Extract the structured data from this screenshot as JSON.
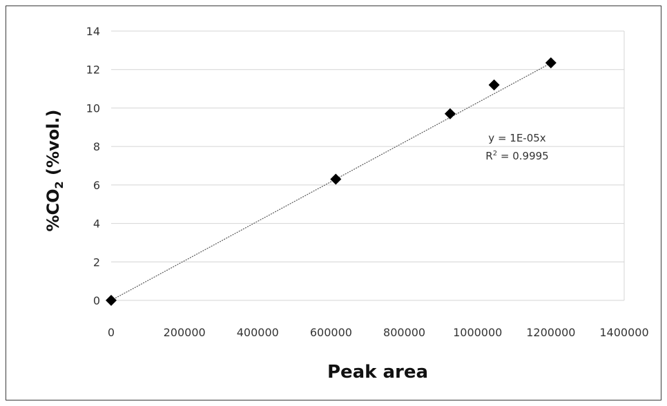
{
  "chart_data": {
    "type": "scatter",
    "xlabel": "Peak area",
    "ylabel_main": "%CO",
    "ylabel_sub": "2",
    "ylabel_tail": " (%vol.)",
    "xlim": [
      0,
      1400000
    ],
    "ylim": [
      0,
      14
    ],
    "x_ticks": [
      "0",
      "200000",
      "400000",
      "600000",
      "800000",
      "1000000",
      "1200000",
      "1400000"
    ],
    "y_ticks": [
      "0",
      "2",
      "4",
      "6",
      "8",
      "10",
      "12",
      "14"
    ],
    "grid": true,
    "points": [
      {
        "x": 0,
        "y": 0
      },
      {
        "x": 613000,
        "y": 6.3
      },
      {
        "x": 925000,
        "y": 9.7
      },
      {
        "x": 1045000,
        "y": 11.2
      },
      {
        "x": 1200000,
        "y": 12.35
      }
    ],
    "trendline": {
      "slope": 1.028e-05,
      "from": 0,
      "to": 1200000
    },
    "equation": "y = 1E-05x",
    "r2_prefix": "R",
    "r2_sup": "2",
    "r2_value": " = 0.9995",
    "marker_color": "#000000",
    "line_color": "#555555",
    "grid_color": "#d4d4d4"
  }
}
